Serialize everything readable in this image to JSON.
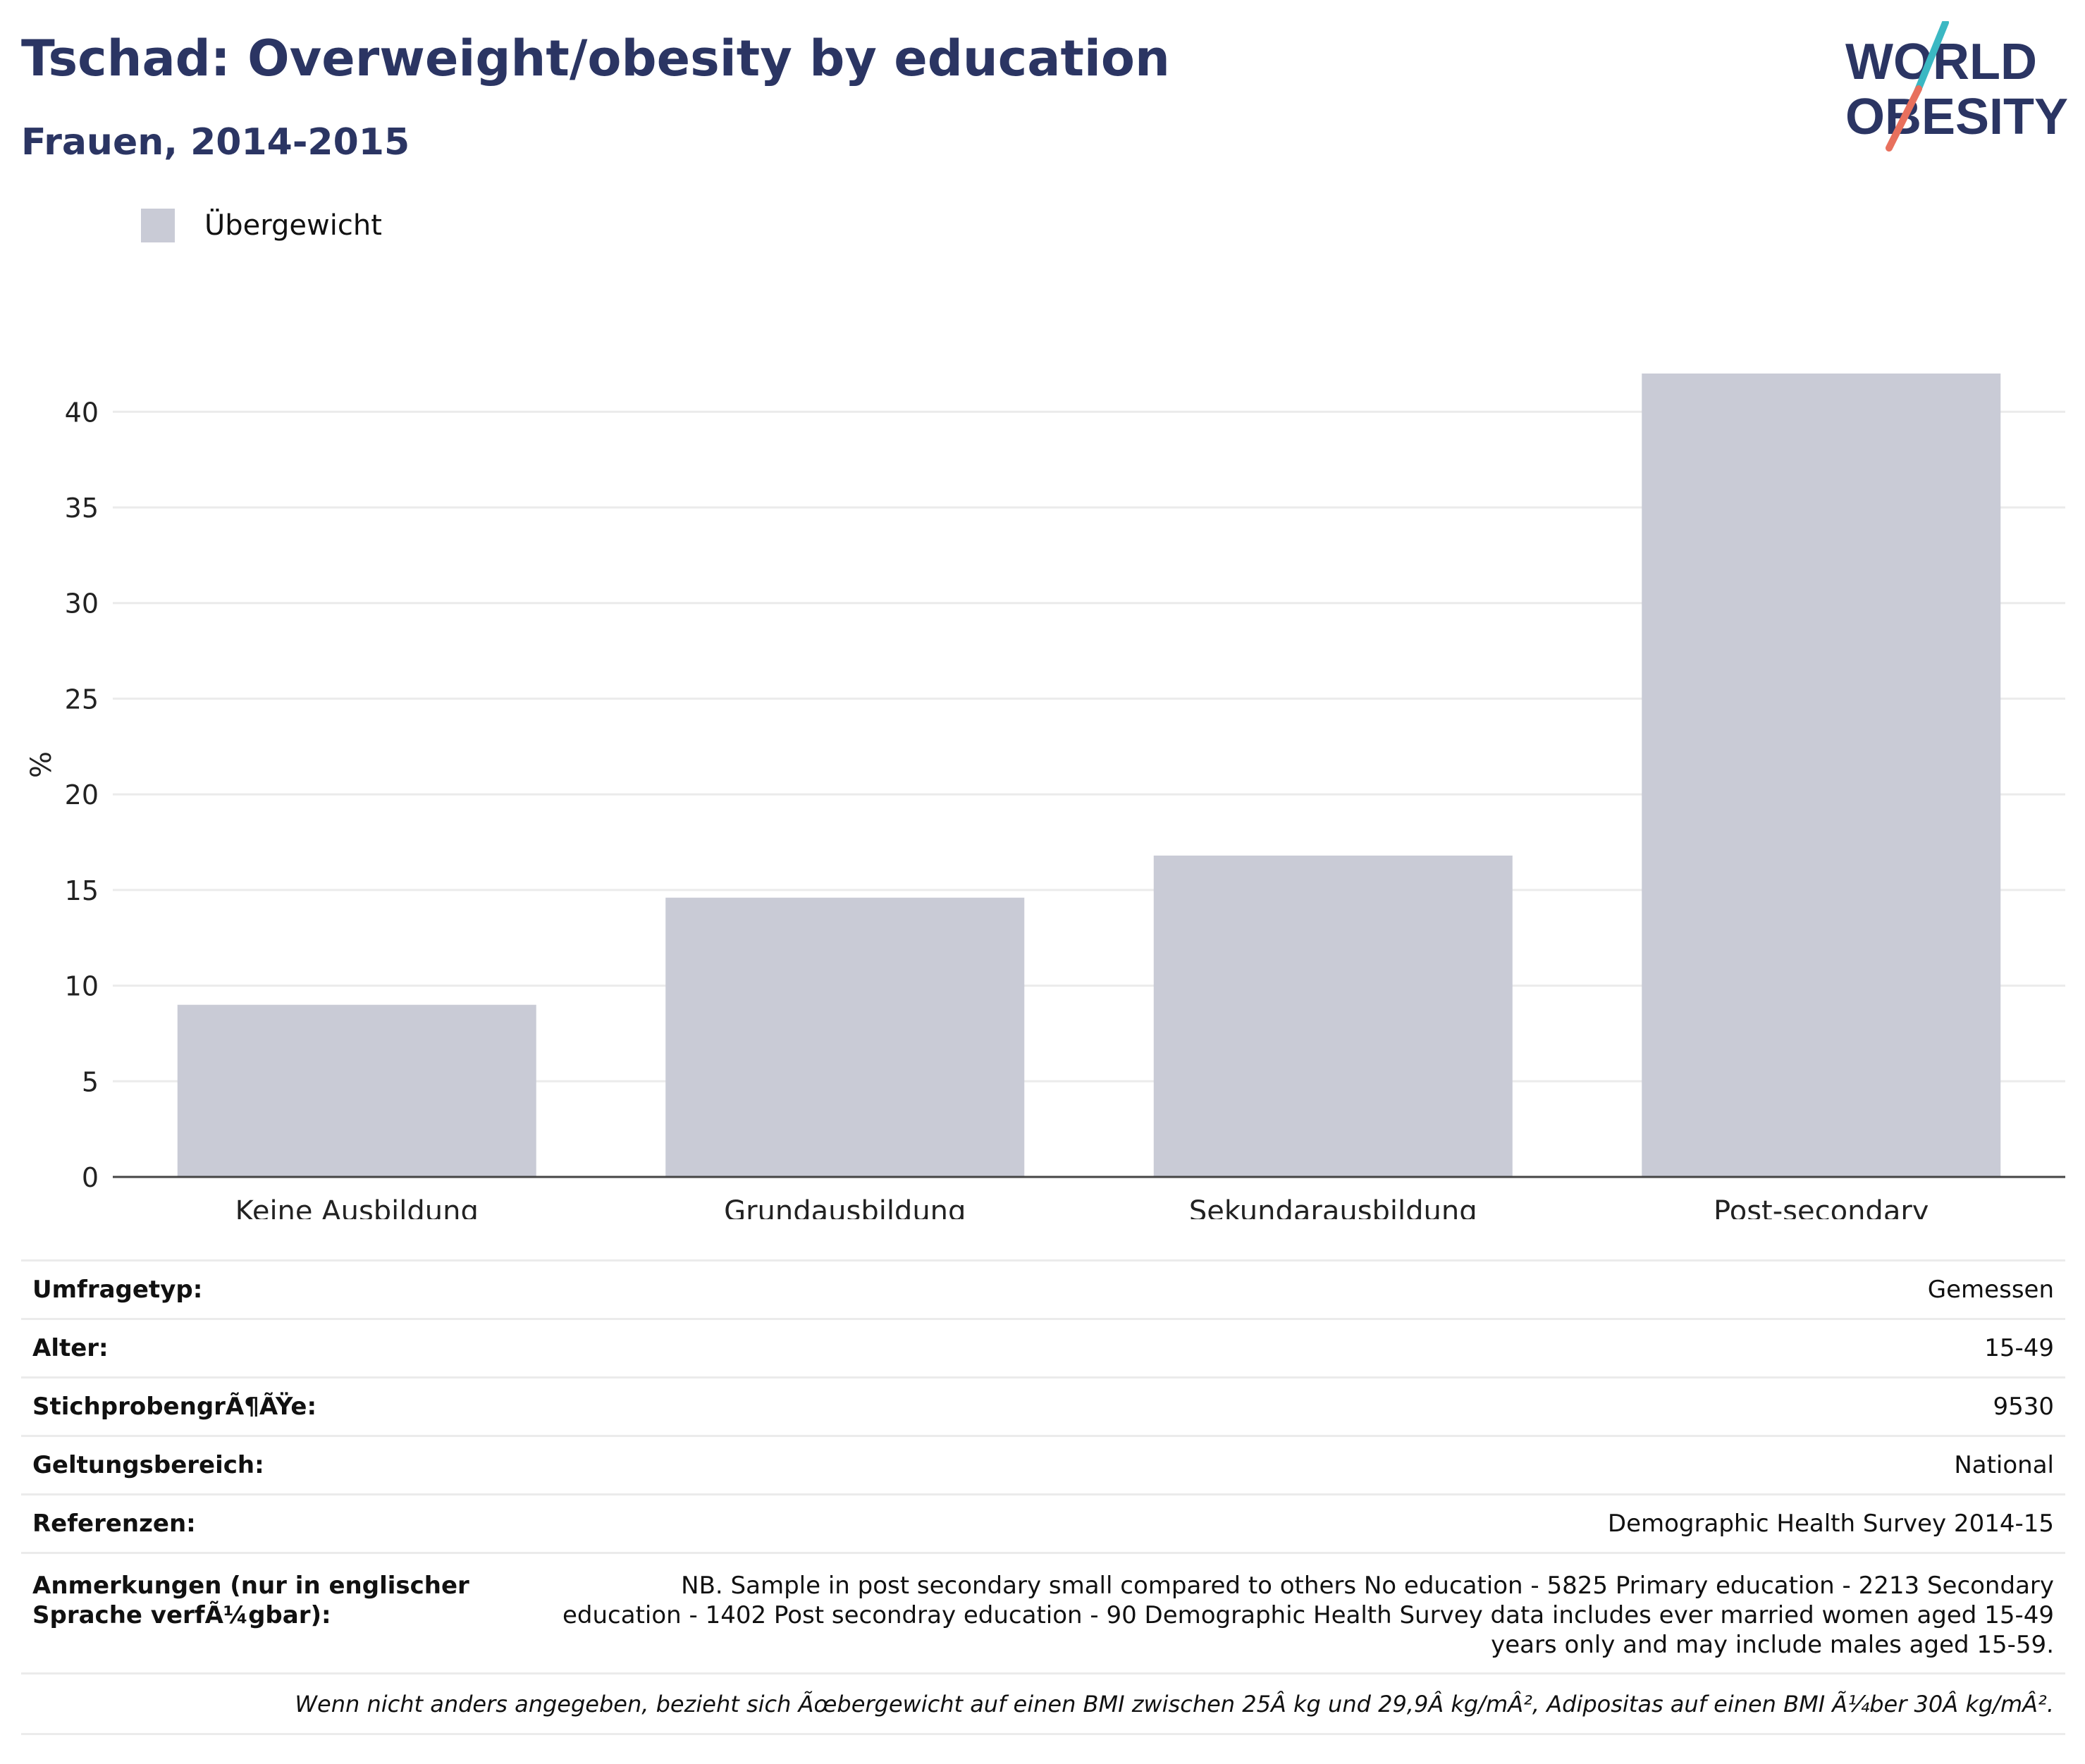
{
  "header": {
    "title": "Tschad: Overweight/obesity by education",
    "subtitle": "Frauen, 2014-2015",
    "logo_line1": "WORLD",
    "logo_line2": "OBESITY"
  },
  "legend": {
    "label": "Übergewicht"
  },
  "colors": {
    "bar": "#c9cbd6",
    "title": "#2b3563",
    "logo_teal": "#3bb8c3",
    "logo_coral": "#e8705d",
    "grid": "#ebebeb",
    "axis": "#444444"
  },
  "chart_data": {
    "type": "bar",
    "categories": [
      "Keine Ausbildung",
      "Grundausbildung",
      "Sekundarausbildung",
      "Post-secondary"
    ],
    "series": [
      {
        "name": "Übergewicht",
        "values": [
          9.0,
          14.6,
          16.8,
          42.0
        ]
      }
    ],
    "ylabel": "%",
    "xlabel": "",
    "ylim": [
      0,
      42
    ],
    "yticks": [
      0,
      5,
      10,
      15,
      20,
      25,
      30,
      35,
      40
    ],
    "grid": true,
    "legend_position": "top-left"
  },
  "info": {
    "rows": [
      {
        "label": "Umfragetyp:",
        "value": "Gemessen"
      },
      {
        "label": "Alter:",
        "value": "15-49"
      },
      {
        "label": "StichprobengrÃ¶ÃŸe:",
        "value": "9530"
      },
      {
        "label": "Geltungsbereich:",
        "value": "National"
      },
      {
        "label": "Referenzen:",
        "value": "Demographic Health Survey 2014-15"
      }
    ],
    "notes_label": "Anmerkungen (nur in englischer Sprache verfÃ¼gbar):",
    "notes_value": "NB. Sample in post secondary small compared to others No education - 5825 Primary education - 2213 Secondary education - 1402 Post secondray education - 90 Demographic Health Survey data includes ever married women aged 15-49 years only and may include males aged 15-59.",
    "footnote": "Wenn nicht anders angegeben, bezieht sich Ãœbergewicht auf einen BMI zwischen 25Â kg und 29,9Â kg/mÂ², Adipositas auf einen BMI Ã¼ber 30Â kg/mÂ²."
  }
}
